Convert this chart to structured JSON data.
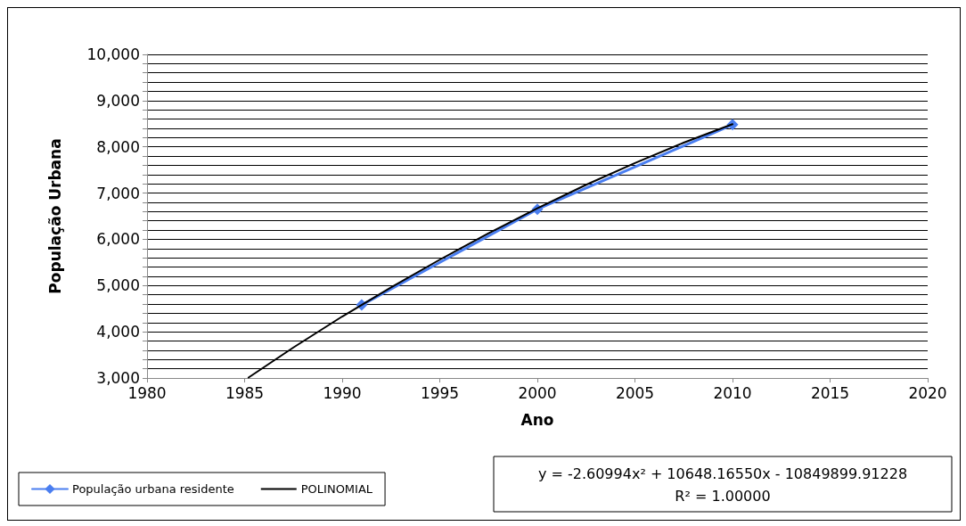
{
  "chart_data": {
    "type": "line",
    "ylabel": "População Urbana",
    "xlabel": "Ano",
    "xlim": [
      1980,
      2020
    ],
    "xticks": [
      1980,
      1985,
      1990,
      1995,
      2000,
      2005,
      2010,
      2015,
      2020
    ],
    "ylim": [
      3000,
      10000
    ],
    "yticks": [
      {
        "value": 3000,
        "label": "3,000"
      },
      {
        "value": 3200,
        "label": null
      },
      {
        "value": 3400,
        "label": null
      },
      {
        "value": 3600,
        "label": null
      },
      {
        "value": 3800,
        "label": null
      },
      {
        "value": 4000,
        "label": "4,000"
      },
      {
        "value": 4200,
        "label": null
      },
      {
        "value": 4400,
        "label": null
      },
      {
        "value": 4600,
        "label": null
      },
      {
        "value": 4800,
        "label": null
      },
      {
        "value": 5000,
        "label": "5,000"
      },
      {
        "value": 5200,
        "label": null
      },
      {
        "value": 5400,
        "label": null
      },
      {
        "value": 5600,
        "label": null
      },
      {
        "value": 5800,
        "label": null
      },
      {
        "value": 6000,
        "label": "6,000"
      },
      {
        "value": 6200,
        "label": null
      },
      {
        "value": 6400,
        "label": null
      },
      {
        "value": 6600,
        "label": null
      },
      {
        "value": 6800,
        "label": null
      },
      {
        "value": 7000,
        "label": "7,000"
      },
      {
        "value": 7200,
        "label": null
      },
      {
        "value": 7400,
        "label": null
      },
      {
        "value": 7600,
        "label": null
      },
      {
        "value": 7800,
        "label": null
      },
      {
        "value": 8000,
        "label": "8,000"
      },
      {
        "value": 8200,
        "label": null
      },
      {
        "value": 8400,
        "label": null
      },
      {
        "value": 8600,
        "label": null
      },
      {
        "value": 8800,
        "label": null
      },
      {
        "value": 9000,
        "label": "9,000"
      },
      {
        "value": 9200,
        "label": null
      },
      {
        "value": 9400,
        "label": null
      },
      {
        "value": 9600,
        "label": null
      },
      {
        "value": 9800,
        "label": null
      },
      {
        "value": 10000,
        "label": "10,000"
      }
    ],
    "grid": "y",
    "legend": "bottom left",
    "series": [
      {
        "name": "População urbana residente",
        "color": "#4a7ef0",
        "marker": "diamond",
        "x": [
          1991,
          2000,
          2010
        ],
        "values": [
          4580,
          6650,
          8480
        ]
      },
      {
        "name": "POLINOMIAL",
        "color": "#000000",
        "marker": "none",
        "x": [
          1985.2,
          1987.5,
          1990,
          1992.5,
          1995,
          1997.5,
          2000,
          2002.5,
          2005,
          2007.5,
          2010
        ],
        "values": [
          3010,
          3660,
          4330,
          4960,
          5560,
          6130,
          6670,
          7180,
          7650,
          8090,
          8490
        ]
      }
    ],
    "annotations": [
      "y = -2.60994x² + 10648.16550x - 10849899.91228",
      "R² = 1.00000"
    ]
  }
}
